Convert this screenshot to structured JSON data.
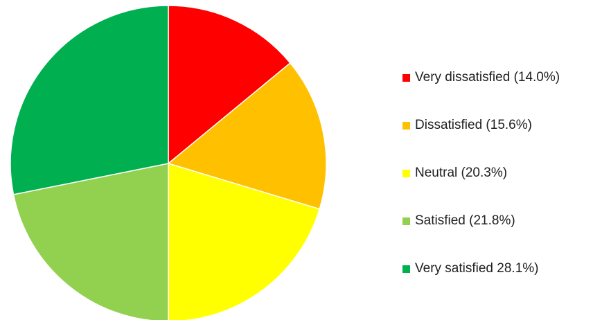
{
  "chart_data": {
    "type": "pie",
    "title": "",
    "start_angle_deg": 0,
    "direction": "clockwise",
    "legend_position": "right",
    "slices": [
      {
        "label": "Very dissatisfied (14.0%)",
        "value": 14.0,
        "color": "#FF0000"
      },
      {
        "label": "Dissatisfied (15.6%)",
        "value": 15.6,
        "color": "#FFC000"
      },
      {
        "label": "Neutral (20.3%)",
        "value": 20.3,
        "color": "#FFFF00"
      },
      {
        "label": "Satisfied (21.8%)",
        "value": 21.8,
        "color": "#92D050"
      },
      {
        "label": "Very satisfied 28.1%)",
        "value": 28.1,
        "color": "#00B050"
      }
    ]
  }
}
